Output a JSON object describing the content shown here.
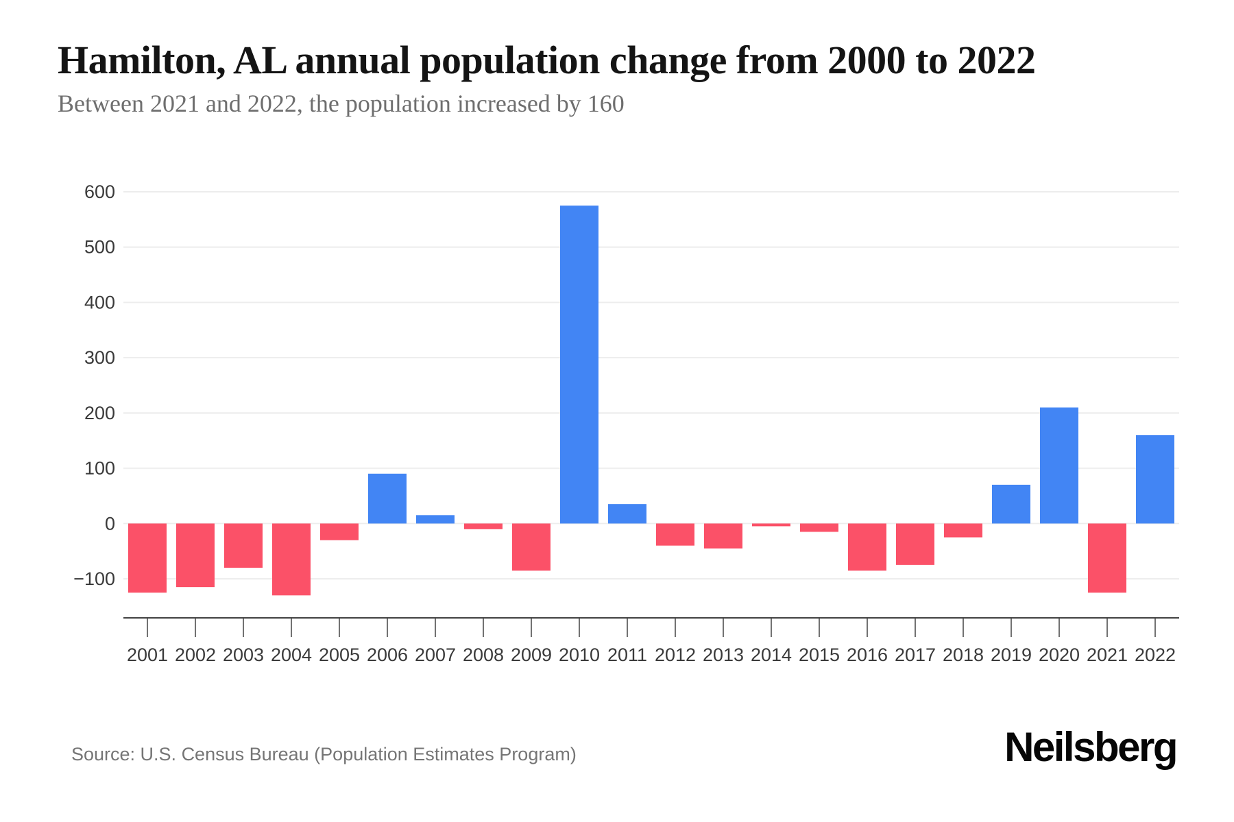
{
  "chart_data": {
    "type": "bar",
    "title": "Hamilton, AL annual population change from 2000 to 2022",
    "subtitle": "Between 2021 and 2022, the population increased by 160",
    "categories": [
      "2001",
      "2002",
      "2003",
      "2004",
      "2005",
      "2006",
      "2007",
      "2008",
      "2009",
      "2010",
      "2011",
      "2012",
      "2013",
      "2014",
      "2015",
      "2016",
      "2017",
      "2018",
      "2019",
      "2020",
      "2021",
      "2022"
    ],
    "values": [
      -125,
      -115,
      -80,
      -130,
      -30,
      90,
      15,
      -10,
      -85,
      575,
      35,
      -40,
      -45,
      -5,
      -15,
      -85,
      -75,
      -25,
      70,
      210,
      -125,
      160
    ],
    "xlabel": "",
    "ylabel": "",
    "y_ticks": [
      600,
      500,
      400,
      300,
      200,
      100,
      0,
      -100
    ],
    "ylim": [
      -100,
      600
    ],
    "grid": true,
    "legend": false,
    "colors": {
      "positive": "#4285F4",
      "negative": "#FB5168",
      "gridline": "#EDEDED",
      "axis": "#424242",
      "tick_label": "#3A3A3A"
    },
    "source": "Source: U.S. Census Bureau (Population Estimates Program)",
    "brand": "Neilsberg"
  }
}
